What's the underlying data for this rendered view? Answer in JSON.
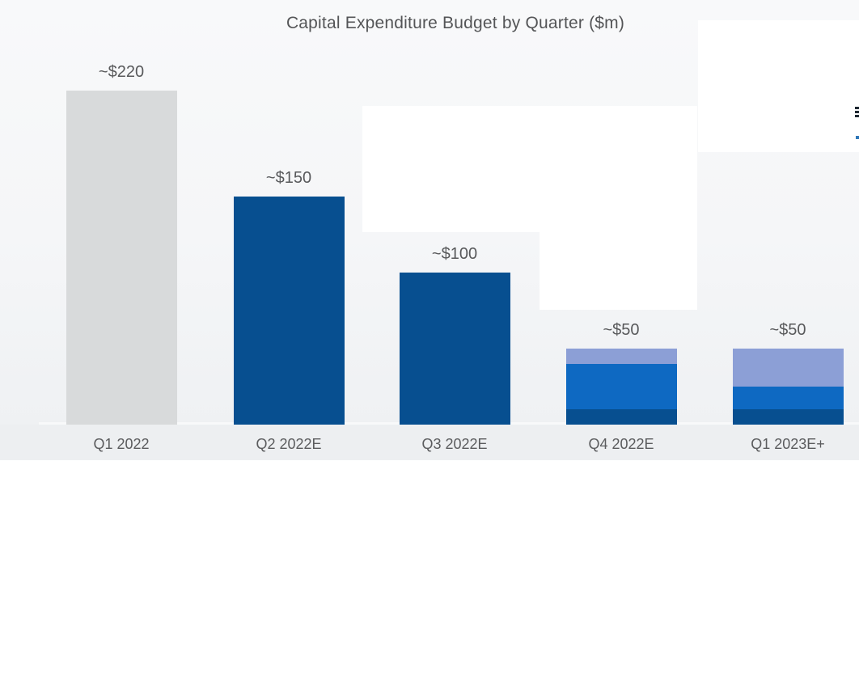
{
  "title": "Capital Expenditure Budget by Quarter ($m)",
  "chart_data": {
    "type": "bar",
    "stacked": true,
    "title": "Capital Expenditure Budget by Quarter ($m)",
    "categories": [
      "Q1 2022",
      "Q2 2022E",
      "Q3 2022E",
      "Q4 2022E",
      "Q1 2023E+"
    ],
    "value_labels": [
      "~$220",
      "~$150",
      "~$100",
      "~$50",
      "~$50"
    ],
    "totals": [
      220,
      150,
      100,
      50,
      50
    ],
    "series": [
      {
        "name": "gray-segment",
        "color": "#D8DADB",
        "values": [
          220,
          0,
          0,
          0,
          0
        ]
      },
      {
        "name": "dark-navy-segment",
        "color": "#074F90",
        "values": [
          0,
          150,
          100,
          10,
          10
        ]
      },
      {
        "name": "medium-blue-segment",
        "color": "#0E69C2",
        "values": [
          0,
          0,
          0,
          30,
          15
        ]
      },
      {
        "name": "light-blue-segment",
        "color": "#8C9FD6",
        "values": [
          0,
          0,
          0,
          10,
          25
        ]
      }
    ],
    "xlabel": "",
    "ylabel": "",
    "ylim": [
      0,
      232
    ],
    "grid": false,
    "legend": "none (covered by white callout overlays)"
  },
  "overlays": {
    "note": "blank white callout boxes pasted over the chart"
  }
}
